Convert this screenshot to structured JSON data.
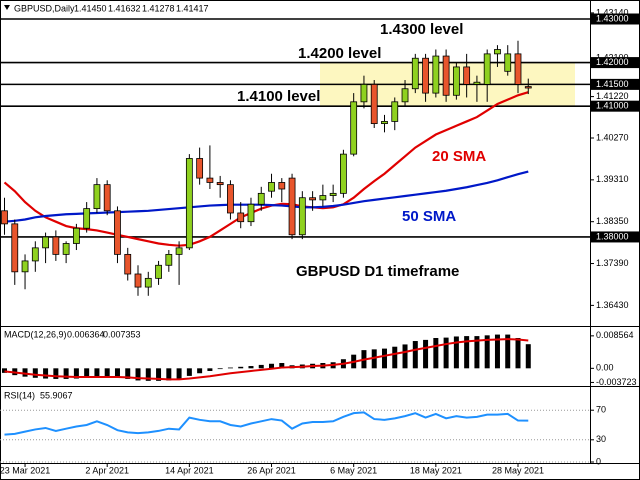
{
  "chart_data": [
    {
      "type": "candlestick",
      "symbol": "GBPUSD,Daily",
      "quote": [
        "1.41450",
        "1.41632",
        "1.41278",
        "1.41417"
      ],
      "categories": [
        null,
        null,
        "23 Mar 2021",
        null,
        null,
        null,
        null,
        null,
        null,
        null,
        "2 Apr 2021",
        null,
        null,
        null,
        null,
        null,
        null,
        null,
        "14 Apr 2021",
        null,
        null,
        null,
        null,
        null,
        null,
        null,
        "26 Apr 2021",
        null,
        null,
        null,
        null,
        null,
        null,
        null,
        "6 May 2021",
        null,
        null,
        null,
        null,
        null,
        null,
        null,
        "18 May 2021",
        null,
        null,
        null,
        null,
        null,
        null,
        null,
        "28 May 2021",
        null
      ],
      "open": [
        1.386,
        1.383,
        1.372,
        1.3745,
        1.3775,
        1.38,
        1.376,
        1.3785,
        1.382,
        1.3865,
        1.392,
        1.386,
        1.376,
        1.3715,
        1.3685,
        1.3705,
        1.3735,
        1.376,
        1.3775,
        1.398,
        1.3935,
        1.3925,
        1.392,
        1.3855,
        1.3835,
        1.3875,
        1.3905,
        1.3925,
        1.3935,
        1.3805,
        1.389,
        1.3885,
        1.3895,
        1.39,
        1.399,
        1.411,
        1.415,
        1.406,
        1.4065,
        1.411,
        1.414,
        1.421,
        1.413,
        1.4215,
        1.4125,
        1.419,
        1.415,
        1.415,
        1.422,
        1.418,
        1.422,
        1.4145
      ],
      "high": [
        1.389,
        1.384,
        1.376,
        1.379,
        1.381,
        1.3815,
        1.379,
        1.383,
        1.388,
        1.3935,
        1.393,
        1.387,
        1.3775,
        1.3735,
        1.372,
        1.3745,
        1.377,
        1.379,
        1.399,
        1.4005,
        1.401,
        1.394,
        1.393,
        1.388,
        1.389,
        1.3915,
        1.3945,
        1.3935,
        1.3945,
        1.3905,
        1.3905,
        1.392,
        1.392,
        1.4,
        1.413,
        1.417,
        1.416,
        1.408,
        1.412,
        1.416,
        1.422,
        1.422,
        1.423,
        1.423,
        1.42,
        1.422,
        1.417,
        1.423,
        1.424,
        1.424,
        1.425,
        1.41632
      ],
      "low": [
        1.3805,
        1.369,
        1.368,
        1.372,
        1.374,
        1.3745,
        1.374,
        1.377,
        1.381,
        1.3855,
        1.385,
        1.374,
        1.37,
        1.3665,
        1.3665,
        1.369,
        1.372,
        1.369,
        1.377,
        1.392,
        1.391,
        1.389,
        1.384,
        1.382,
        1.3825,
        1.386,
        1.389,
        1.388,
        1.3795,
        1.3795,
        1.386,
        1.387,
        1.388,
        1.389,
        1.3985,
        1.4095,
        1.405,
        1.404,
        1.4045,
        1.41,
        1.413,
        1.411,
        1.412,
        1.411,
        1.4115,
        1.412,
        1.411,
        1.411,
        1.419,
        1.417,
        1.413,
        1.41278
      ],
      "close": [
        1.383,
        1.372,
        1.3745,
        1.3775,
        1.38,
        1.376,
        1.3785,
        1.382,
        1.3865,
        1.392,
        1.386,
        1.376,
        1.3715,
        1.3685,
        1.3705,
        1.3735,
        1.376,
        1.3775,
        1.398,
        1.3935,
        1.3925,
        1.392,
        1.3855,
        1.3835,
        1.3875,
        1.39,
        1.3925,
        1.391,
        1.3805,
        1.389,
        1.3885,
        1.3895,
        1.39,
        1.399,
        1.411,
        1.415,
        1.406,
        1.4065,
        1.411,
        1.414,
        1.421,
        1.413,
        1.4215,
        1.4125,
        1.419,
        1.415,
        1.4155,
        1.422,
        1.423,
        1.422,
        1.415,
        1.41417
      ],
      "up_color": "#8fd11f",
      "down_color": "#e8552c",
      "series": [
        {
          "name": "20 SMA",
          "color": "#e00000",
          "values": [
            1.3925,
            1.3905,
            1.388,
            1.386,
            1.3845,
            1.3835,
            1.3825,
            1.382,
            1.3818,
            1.3815,
            1.381,
            1.3805,
            1.38,
            1.3795,
            1.379,
            1.3785,
            1.3782,
            1.378,
            1.3782,
            1.379,
            1.38,
            1.3815,
            1.383,
            1.3845,
            1.3855,
            1.3865,
            1.3872,
            1.3876,
            1.3875,
            1.387,
            1.3868,
            1.3866,
            1.3868,
            1.3875,
            1.389,
            1.391,
            1.3928,
            1.3945,
            1.3965,
            1.3985,
            1.4005,
            1.402,
            1.4035,
            1.4045,
            1.4055,
            1.4065,
            1.4075,
            1.409,
            1.4105,
            1.4115,
            1.4125,
            1.4132
          ]
        },
        {
          "name": "50 SMA",
          "color": "#0018c8",
          "values": [
            1.3835,
            1.3837,
            1.384,
            1.3845,
            1.3848,
            1.385,
            1.3852,
            1.3853,
            1.3854,
            1.3855,
            1.3856,
            1.3857,
            1.3858,
            1.3859,
            1.386,
            1.3862,
            1.3864,
            1.3866,
            1.3868,
            1.387,
            1.3872,
            1.3873,
            1.3874,
            1.3874,
            1.3874,
            1.3874,
            1.3873,
            1.3872,
            1.387,
            1.3868,
            1.3868,
            1.3869,
            1.3871,
            1.3874,
            1.3878,
            1.3882,
            1.3885,
            1.3888,
            1.3891,
            1.3894,
            1.3897,
            1.39,
            1.3903,
            1.3906,
            1.391,
            1.3914,
            1.3919,
            1.3924,
            1.393,
            1.3937,
            1.3944,
            1.395
          ]
        }
      ],
      "levels": [
        {
          "value": 1.43,
          "label": "1.43000"
        },
        {
          "value": 1.42,
          "label": "1.42000"
        },
        {
          "value": 1.415,
          "label": "1.41500"
        },
        {
          "value": 1.41,
          "label": "1.41000"
        },
        {
          "value": 1.38,
          "label": "1.38000"
        }
      ],
      "annotations": [
        "1.4300 level",
        "1.4200 level",
        "1.4100 level",
        "GBPUSD D1 timeframe"
      ],
      "ylim": [
        1.3598,
        1.4339
      ],
      "yticks": [
        {
          "value": 1.4314,
          "label": "1.43140"
        },
        {
          "value": 1.421,
          "label": "1.42100"
        },
        {
          "value": 1.4122,
          "label": "1.41220"
        },
        {
          "value": 1.4027,
          "label": "1.40270"
        },
        {
          "value": 1.3931,
          "label": "1.39310"
        },
        {
          "value": 1.3835,
          "label": "1.38350"
        },
        {
          "value": 1.3739,
          "label": "1.37390"
        },
        {
          "value": 1.3643,
          "label": "1.36430"
        }
      ]
    },
    {
      "type": "macd",
      "title": "MACD(12,26,9)",
      "series": [
        {
          "type": "bar",
          "color": "#000000",
          "values": [
            -0.0012,
            -0.0018,
            -0.0022,
            -0.0025,
            -0.0027,
            -0.0028,
            -0.0028,
            -0.0027,
            -0.0025,
            -0.0022,
            -0.0021,
            -0.0024,
            -0.0028,
            -0.0032,
            -0.0033,
            -0.0033,
            -0.0032,
            -0.003,
            -0.002,
            -0.0013,
            -0.0007,
            -0.0002,
            0.0002,
            0.0004,
            0.0006,
            0.0009,
            0.0012,
            0.0014,
            0.0008,
            0.001,
            0.0012,
            0.0014,
            0.0016,
            0.0024,
            0.0036,
            0.0048,
            0.005,
            0.0052,
            0.0057,
            0.0063,
            0.0072,
            0.0075,
            0.008,
            0.0081,
            0.0084,
            0.0085,
            0.0085,
            0.0087,
            0.0089,
            0.0089,
            0.008,
            0.006364
          ]
        },
        {
          "type": "line",
          "color": "#e00000",
          "values": [
            -0.0008,
            -0.0011,
            -0.0014,
            -0.0017,
            -0.0019,
            -0.0021,
            -0.0022,
            -0.0023,
            -0.0023,
            -0.0023,
            -0.0023,
            -0.0023,
            -0.0024,
            -0.0026,
            -0.0027,
            -0.0028,
            -0.0029,
            -0.0029,
            -0.0027,
            -0.0024,
            -0.0021,
            -0.0017,
            -0.0013,
            -0.001,
            -0.0007,
            -0.0004,
            -0.0001,
            0.0002,
            0.0003,
            0.0004,
            0.0006,
            0.0007,
            0.0009,
            0.0012,
            0.0017,
            0.0023,
            0.0028,
            0.0033,
            0.0038,
            0.0043,
            0.0049,
            0.0054,
            0.0059,
            0.0064,
            0.0068,
            0.0071,
            0.0073,
            0.0075,
            0.0076,
            0.0077,
            0.0076,
            0.007353
          ]
        }
      ],
      "ylim": [
        -0.0044,
        0.0109
      ],
      "yticks": [
        0.008564,
        {
          "value": 0,
          "label": "0.00"
        },
        -0.003723
      ]
    },
    {
      "type": "line",
      "title": "RSI(14)",
      "color": "#1e90ff",
      "values": [
        37,
        38,
        41,
        44,
        46,
        42,
        45,
        48,
        50,
        55,
        50,
        43,
        40,
        39,
        40,
        42,
        45,
        44,
        60,
        57,
        55,
        55,
        50,
        48,
        52,
        55,
        58,
        56,
        45,
        52,
        54,
        54,
        55,
        61,
        66,
        67,
        58,
        57,
        59,
        62,
        66,
        60,
        65,
        59,
        62,
        60,
        61,
        64,
        64,
        65,
        56,
        55.9067
      ],
      "ylim": [
        0,
        100
      ],
      "yticks": [
        70,
        30,
        0
      ]
    }
  ]
}
